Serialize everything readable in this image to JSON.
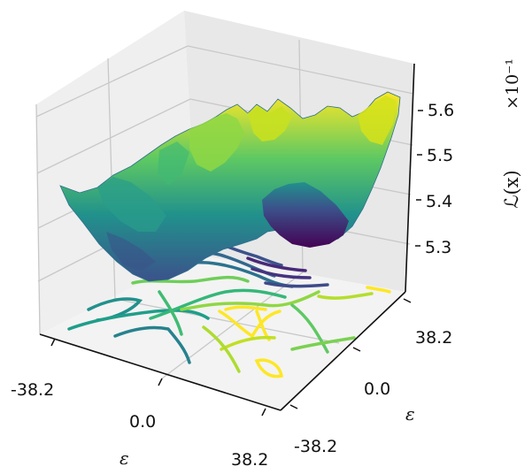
{
  "chart_data": {
    "type": "surface",
    "x_axis": {
      "label": "ε",
      "ticks": [
        "-38.2",
        "0.0",
        "38.2"
      ],
      "range": [
        -38.2,
        38.2
      ]
    },
    "y_axis": {
      "label": "ε",
      "ticks": [
        "-38.2",
        "0.0",
        "38.2"
      ],
      "range": [
        -38.2,
        38.2
      ]
    },
    "z_axis": {
      "label": "ℒ(x)",
      "scale": "×10⁻¹",
      "ticks": [
        "5.3",
        "5.4",
        "5.5",
        "5.6"
      ],
      "range": [
        5.22,
        5.66
      ]
    },
    "colormap": "viridis",
    "grid": true,
    "projection": "3d",
    "contour_projection": "floor",
    "colors": {
      "low": "#440154",
      "mid": "#21918c",
      "high": "#fde725",
      "pane": "#f2f2f2",
      "grid": "#c8c8c8"
    }
  }
}
